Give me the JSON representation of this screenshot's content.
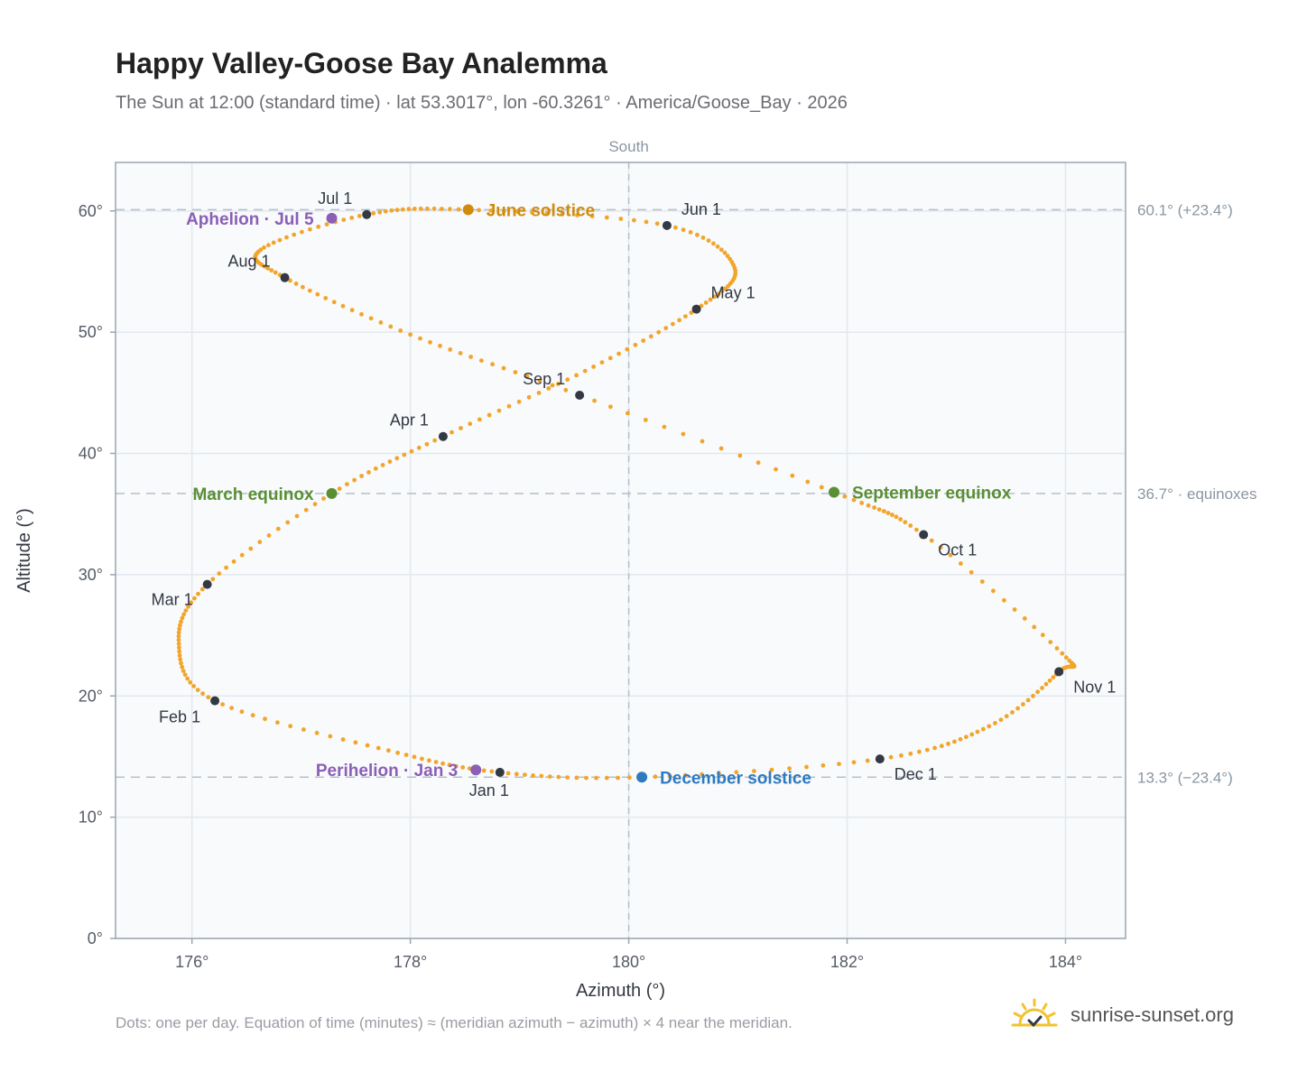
{
  "title": "Happy Valley-Goose Bay Analemma",
  "subtitle": "The Sun at 12:00 (standard time) · lat 53.3017°, lon -60.3261° · America/Goose_Bay · 2026",
  "footnote": "Dots: one per day. Equation of time (minutes) ≈ (meridian azimuth − azimuth) × 4 near the meridian.",
  "brand": {
    "name": "sunrise-sunset.org",
    "icon": "sun-logo-icon",
    "color": "#f2c230"
  },
  "colors": {
    "curve": "#f2a52a",
    "month_marker": "#333842",
    "aphelion": "#8a5fb5",
    "perihelion": "#8a5fb5",
    "june_solstice": "#d18b0c",
    "december_solstice": "#2f7abf",
    "equinox": "#5a8f34",
    "plot_bg": "#f8fafc",
    "grid": "#e3e8ee",
    "ref_line": "#b4c0ca"
  },
  "chart_data": {
    "type": "scatter",
    "title": "Happy Valley-Goose Bay Analemma",
    "xlabel": "Azimuth (°)",
    "ylabel": "Altitude (°)",
    "xlim": [
      175.3,
      184.55
    ],
    "ylim": [
      0,
      64
    ],
    "grid": true,
    "x_ticks": [
      176,
      178,
      180,
      182,
      184
    ],
    "x_tick_labels": [
      "176°",
      "178°",
      "180°",
      "182°",
      "184°"
    ],
    "y_ticks": [
      0,
      10,
      20,
      30,
      40,
      50,
      60
    ],
    "y_tick_labels": [
      "0°",
      "10°",
      "20°",
      "30°",
      "40°",
      "50°",
      "60°"
    ],
    "meridian": {
      "x": 180,
      "label": "South"
    },
    "reference_lines": [
      {
        "y": 60.1,
        "label": "60.1° (+23.4°)"
      },
      {
        "y": 36.7,
        "label": "36.7° · equinoxes"
      },
      {
        "y": 13.3,
        "label": "13.3° (−23.4°)"
      }
    ],
    "month_markers": [
      {
        "label": "Jan 1",
        "x": 178.82,
        "y": 13.7
      },
      {
        "label": "Feb 1",
        "x": 176.21,
        "y": 19.6
      },
      {
        "label": "Mar 1",
        "x": 176.14,
        "y": 29.2
      },
      {
        "label": "Apr 1",
        "x": 178.3,
        "y": 41.4
      },
      {
        "label": "May 1",
        "x": 180.62,
        "y": 51.9
      },
      {
        "label": "Jun 1",
        "x": 180.35,
        "y": 58.8
      },
      {
        "label": "Jul 1",
        "x": 177.6,
        "y": 59.7
      },
      {
        "label": "Aug 1",
        "x": 176.85,
        "y": 54.5
      },
      {
        "label": "Sep 1",
        "x": 179.55,
        "y": 44.8
      },
      {
        "label": "Oct 1",
        "x": 182.7,
        "y": 33.3
      },
      {
        "label": "Nov 1",
        "x": 183.94,
        "y": 22.0
      },
      {
        "label": "Dec 1",
        "x": 182.3,
        "y": 14.8
      }
    ],
    "events": [
      {
        "label": "Perihelion · Jan 3",
        "x": 178.6,
        "y": 13.9,
        "kind": "perihelion"
      },
      {
        "label": "March equinox",
        "x": 177.28,
        "y": 36.7,
        "kind": "equinox"
      },
      {
        "label": "June solstice",
        "x": 178.53,
        "y": 60.1,
        "kind": "june_solstice"
      },
      {
        "label": "Aphelion · Jul 5",
        "x": 177.28,
        "y": 59.4,
        "kind": "aphelion"
      },
      {
        "label": "September equinox",
        "x": 181.88,
        "y": 36.8,
        "kind": "equinox"
      },
      {
        "label": "December solstice",
        "x": 180.12,
        "y": 13.3,
        "kind": "december_solstice"
      }
    ],
    "curve_control_points": [
      [
        178.82,
        13.7
      ],
      [
        177.8,
        15.5
      ],
      [
        176.21,
        19.6
      ],
      [
        175.88,
        24.3
      ],
      [
        176.14,
        29.2
      ],
      [
        177.28,
        36.7
      ],
      [
        178.3,
        41.4
      ],
      [
        179.6,
        46.8
      ],
      [
        180.62,
        51.9
      ],
      [
        180.97,
        55.3
      ],
      [
        180.35,
        58.8
      ],
      [
        178.53,
        60.1
      ],
      [
        177.6,
        59.7
      ],
      [
        176.63,
        56.8
      ],
      [
        176.85,
        54.5
      ],
      [
        178.0,
        49.8
      ],
      [
        179.55,
        44.8
      ],
      [
        181.88,
        36.8
      ],
      [
        182.7,
        33.3
      ],
      [
        183.97,
        23.5
      ],
      [
        183.94,
        22.0
      ],
      [
        183.3,
        17.5
      ],
      [
        182.3,
        14.8
      ],
      [
        180.12,
        13.3
      ],
      [
        178.82,
        13.7
      ]
    ],
    "notes": "Dots: one per day."
  }
}
